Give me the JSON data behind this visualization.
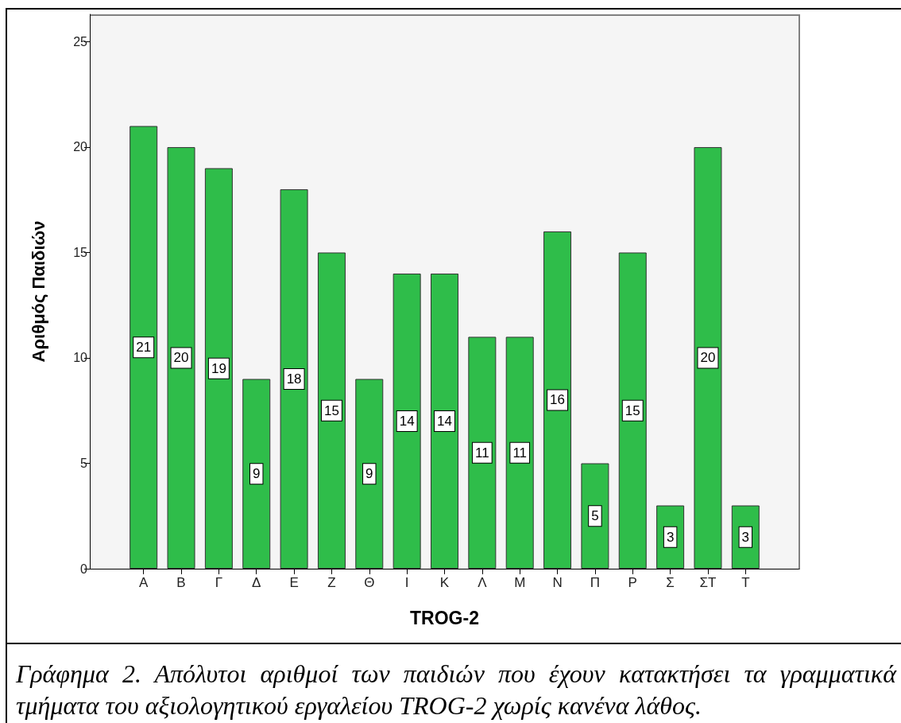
{
  "chart_data": {
    "type": "bar",
    "xlabel": "TROG-2",
    "ylabel": "Αριθμός Παιδιών",
    "categories": [
      "Α",
      "Β",
      "Γ",
      "Δ",
      "Ε",
      "Ζ",
      "Θ",
      "Ι",
      "Κ",
      "Λ",
      "Μ",
      "Ν",
      "Π",
      "Ρ",
      "Σ",
      "ΣΤ",
      "Τ"
    ],
    "values": [
      21,
      20,
      19,
      9,
      18,
      15,
      9,
      14,
      14,
      11,
      11,
      16,
      5,
      15,
      3,
      20,
      3
    ],
    "color": "#2fbd4a",
    "ylim": [
      0,
      26.3
    ],
    "yticks": [
      0,
      5,
      10,
      15,
      20,
      25
    ],
    "data_labels": true,
    "annotations": [
      "Γράφημα 2. Απόλυτοι αριθμοί των παιδιών που έχουν κατακτήσει τα γραμματικά τμήματα του αξιολογητικού εργαλείου TROG-2 χωρίς κανένα λάθος."
    ]
  }
}
